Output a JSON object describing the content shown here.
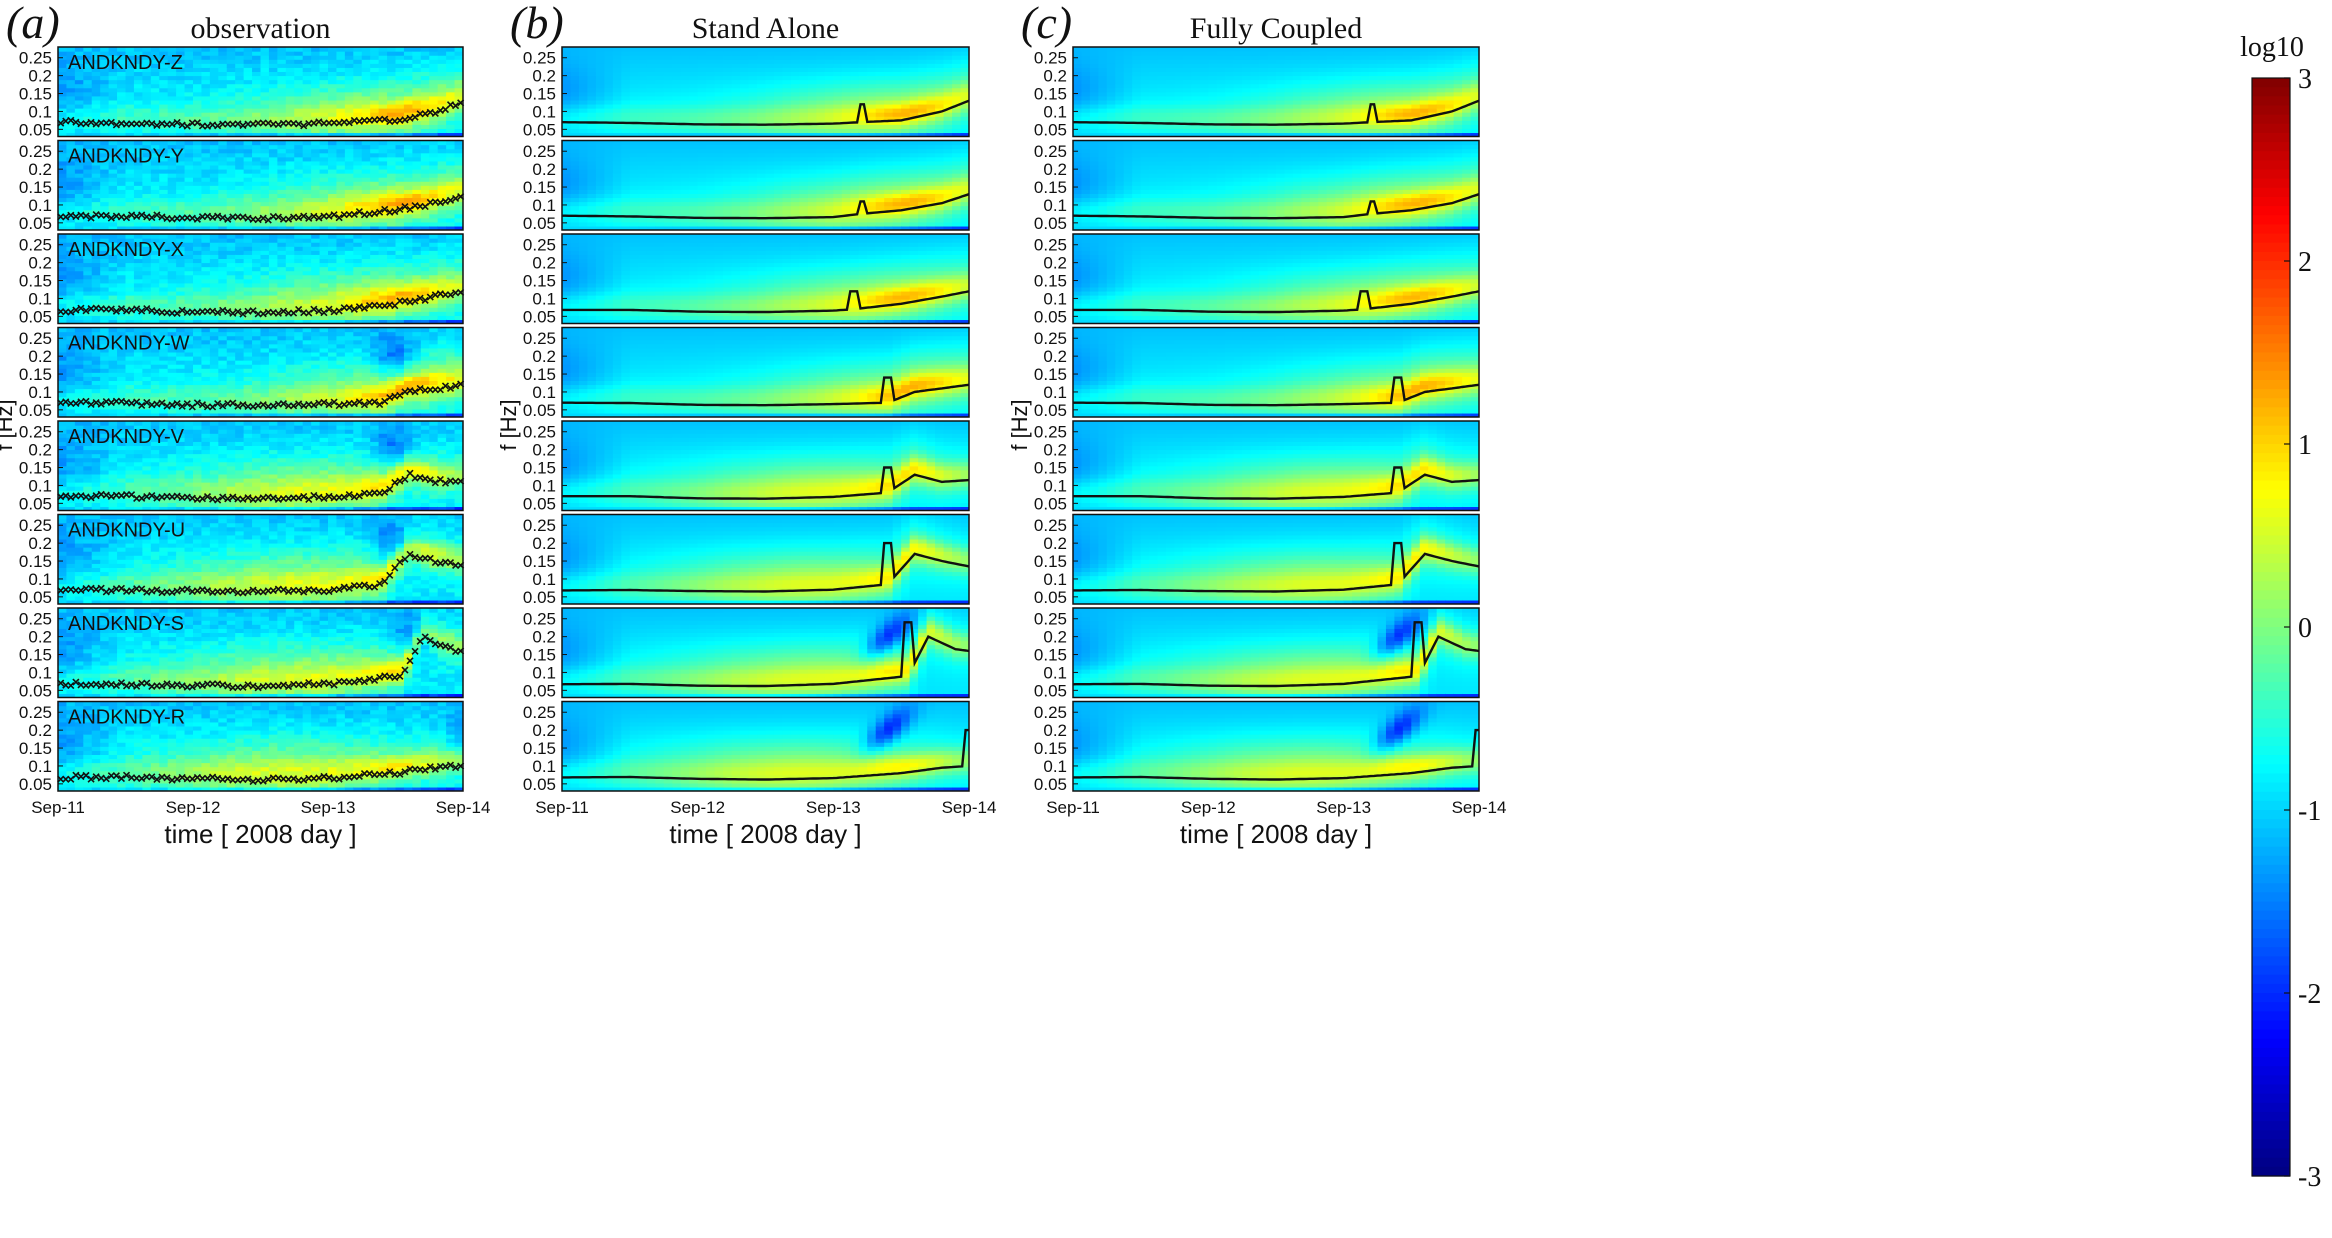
{
  "chart_data": {
    "type": "heatmap",
    "figure": "wave spectra comparison",
    "colorbar": {
      "label": "log10",
      "range": [
        -3,
        3
      ],
      "ticks": [
        "3",
        "2",
        "1",
        "0",
        "-1",
        "-2",
        "-3"
      ],
      "colormap": "jet"
    },
    "x_axis": {
      "label": "time [ 2008 day ]",
      "ticks": [
        "Sep-11",
        "Sep-12",
        "Sep-13",
        "Sep-14"
      ],
      "range_days": [
        0,
        3
      ]
    },
    "y_axis": {
      "label": "f [Hz]",
      "range": [
        0.03,
        0.28
      ],
      "ticks": [
        "0.25",
        "0.2",
        "0.15",
        "0.1",
        "0.05"
      ]
    },
    "panels": [
      {
        "id": "a",
        "letter": "(a)",
        "title": "observation",
        "kind": "observation",
        "show_ylabel": true
      },
      {
        "id": "b",
        "letter": "(b)",
        "title": "Stand Alone",
        "kind": "model",
        "show_ylabel": true
      },
      {
        "id": "c",
        "letter": "(c)",
        "title": "Fully Coupled",
        "kind": "model",
        "show_ylabel": true
      }
    ],
    "stations": [
      {
        "label": "ANDKNDY-Z",
        "peak_day": 2.4,
        "peak_offset": 0.02,
        "jump_day": 2.2,
        "jump_to": 0.12,
        "peak_freq": [
          [
            0,
            0.07
          ],
          [
            0.5,
            0.068
          ],
          [
            1,
            0.064
          ],
          [
            1.5,
            0.063
          ],
          [
            2.0,
            0.066
          ],
          [
            2.2,
            0.07
          ],
          [
            2.5,
            0.075
          ],
          [
            2.8,
            0.1
          ],
          [
            3,
            0.13
          ]
        ]
      },
      {
        "label": "ANDKNDY-Y",
        "peak_day": 2.4,
        "peak_offset": 0.01,
        "jump_day": 2.2,
        "jump_to": 0.11,
        "peak_freq": [
          [
            0,
            0.07
          ],
          [
            0.5,
            0.068
          ],
          [
            1,
            0.064
          ],
          [
            1.5,
            0.063
          ],
          [
            2.0,
            0.066
          ],
          [
            2.2,
            0.075
          ],
          [
            2.5,
            0.085
          ],
          [
            2.8,
            0.105
          ],
          [
            3,
            0.13
          ]
        ]
      },
      {
        "label": "ANDKNDY-X",
        "peak_day": 2.3,
        "peak_offset": 0.0,
        "jump_day": 2.15,
        "jump_to": 0.12,
        "peak_freq": [
          [
            0,
            0.068
          ],
          [
            0.5,
            0.068
          ],
          [
            1,
            0.063
          ],
          [
            1.5,
            0.062
          ],
          [
            2.0,
            0.066
          ],
          [
            2.15,
            0.07
          ],
          [
            2.5,
            0.085
          ],
          [
            2.8,
            0.105
          ],
          [
            3,
            0.12
          ]
        ]
      },
      {
        "label": "ANDKNDY-W",
        "peak_day": 2.5,
        "peak_offset": -0.01,
        "jump_day": 2.4,
        "jump_to": 0.14,
        "peak_freq": [
          [
            0,
            0.07
          ],
          [
            0.5,
            0.069
          ],
          [
            1,
            0.064
          ],
          [
            1.5,
            0.063
          ],
          [
            2.0,
            0.066
          ],
          [
            2.4,
            0.07
          ],
          [
            2.6,
            0.1
          ],
          [
            2.8,
            0.11
          ],
          [
            3,
            0.12
          ]
        ]
      },
      {
        "label": "ANDKNDY-V",
        "peak_day": 1.9,
        "peak_offset": -0.02,
        "jump_day": 2.4,
        "jump_to": 0.15,
        "peak_freq": [
          [
            0,
            0.07
          ],
          [
            0.5,
            0.07
          ],
          [
            1,
            0.064
          ],
          [
            1.5,
            0.063
          ],
          [
            2.0,
            0.068
          ],
          [
            2.4,
            0.08
          ],
          [
            2.6,
            0.13
          ],
          [
            2.8,
            0.11
          ],
          [
            3,
            0.115
          ]
        ]
      },
      {
        "label": "ANDKNDY-U",
        "peak_day": 1.8,
        "peak_offset": -0.02,
        "jump_day": 2.4,
        "jump_to": 0.2,
        "peak_freq": [
          [
            0,
            0.068
          ],
          [
            0.5,
            0.069
          ],
          [
            1,
            0.066
          ],
          [
            1.5,
            0.065
          ],
          [
            2.0,
            0.07
          ],
          [
            2.4,
            0.085
          ],
          [
            2.6,
            0.17
          ],
          [
            2.8,
            0.15
          ],
          [
            3,
            0.135
          ]
        ]
      },
      {
        "label": "ANDKNDY-S",
        "peak_day": 1.8,
        "peak_offset": -0.02,
        "jump_day": 2.55,
        "jump_to": 0.24,
        "peak_freq": [
          [
            0,
            0.067
          ],
          [
            0.5,
            0.068
          ],
          [
            1,
            0.063
          ],
          [
            1.5,
            0.062
          ],
          [
            2.0,
            0.068
          ],
          [
            2.55,
            0.09
          ],
          [
            2.7,
            0.2
          ],
          [
            2.9,
            0.165
          ],
          [
            3,
            0.16
          ]
        ]
      },
      {
        "label": "ANDKNDY-R",
        "peak_day": 1.7,
        "peak_offset": -0.02,
        "jump_day": 2.98,
        "jump_to": 0.2,
        "peak_freq": [
          [
            0,
            0.068
          ],
          [
            0.5,
            0.069
          ],
          [
            1,
            0.064
          ],
          [
            1.5,
            0.062
          ],
          [
            2.0,
            0.066
          ],
          [
            2.5,
            0.08
          ],
          [
            2.8,
            0.095
          ],
          [
            3,
            0.1
          ]
        ]
      }
    ]
  }
}
